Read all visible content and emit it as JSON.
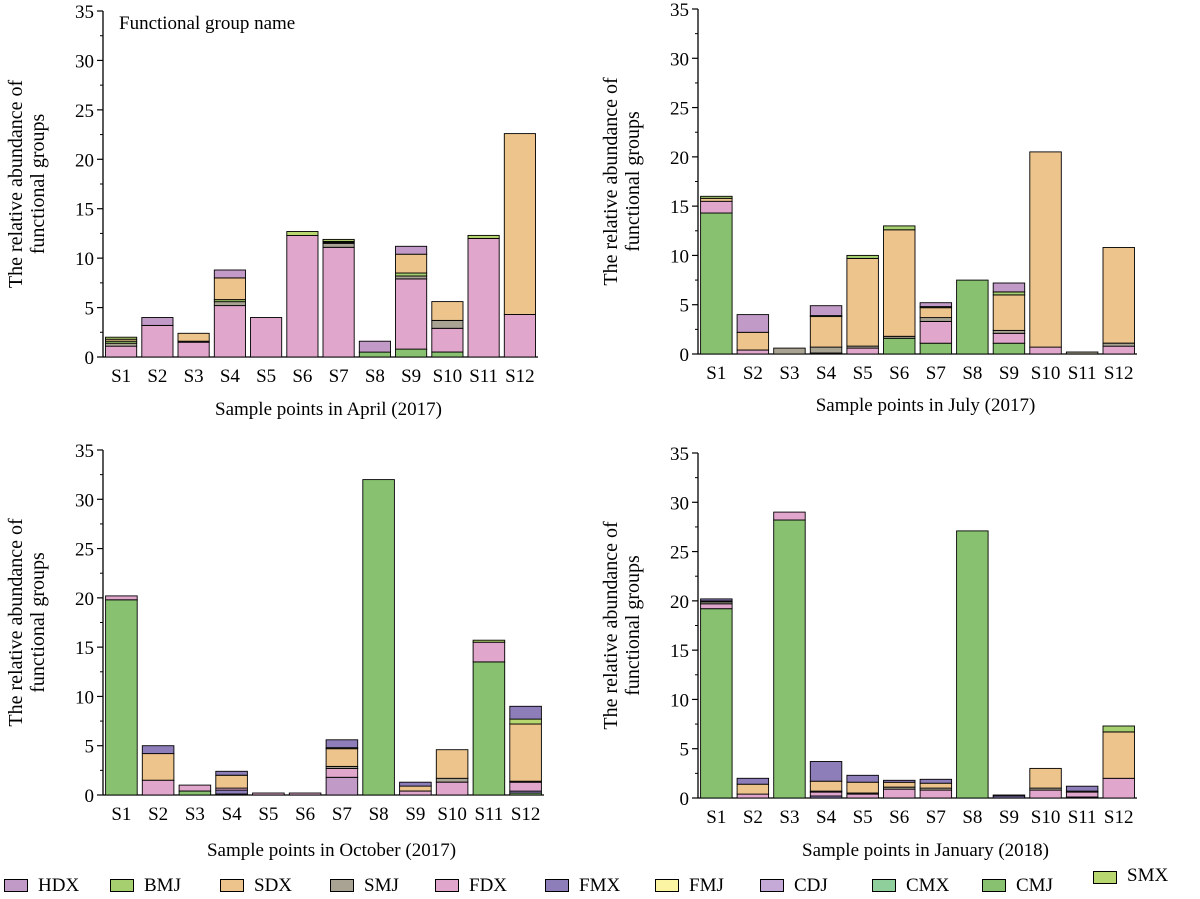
{
  "figure_note": "Functional group name",
  "y_axis_label": [
    "The relative abundance of",
    "functional groups"
  ],
  "legend": {
    "items": [
      {
        "key": "HDX",
        "label": "HDX",
        "color": "#c29ac7"
      },
      {
        "key": "BMJ",
        "label": "BMJ",
        "color": "#a6d06f"
      },
      {
        "key": "SDX",
        "label": "SDX",
        "color": "#ecc48c"
      },
      {
        "key": "SMJ",
        "label": "SMJ",
        "color": "#a9a393"
      },
      {
        "key": "FDX",
        "label": "FDX",
        "color": "#e0a6cb"
      },
      {
        "key": "FMX",
        "label": "FMX",
        "color": "#8d7db8"
      },
      {
        "key": "FMJ",
        "label": "FMJ",
        "color": "#fbf5a3"
      },
      {
        "key": "CDJ",
        "label": "CDJ",
        "color": "#c5a9d6"
      },
      {
        "key": "CMX",
        "label": "CMX",
        "color": "#8fcf9c"
      },
      {
        "key": "CMJ",
        "label": "CMJ",
        "color": "#88c170"
      },
      {
        "key": "SMX",
        "label": "SMX",
        "color": "#b8d771"
      }
    ]
  },
  "chart_data": [
    {
      "type": "bar",
      "stacked": true,
      "xlabel": "Sample points in April (2017)",
      "ylabel": "The relative abundance of functional groups",
      "ylim": [
        0,
        35
      ],
      "yticks": [
        "0",
        "5",
        "10",
        "15",
        "20",
        "25",
        "30",
        "35"
      ],
      "categories": [
        "S1",
        "S2",
        "S3",
        "S4",
        "S5",
        "S6",
        "S7",
        "S8",
        "S9",
        "S10",
        "S11",
        "S12"
      ],
      "series": [
        {
          "name": "CMJ",
          "values": [
            0,
            0,
            0,
            0,
            0,
            0,
            0,
            0.5,
            0.8,
            0.5,
            0,
            0
          ]
        },
        {
          "name": "FDX",
          "values": [
            1.1,
            3.2,
            1.5,
            5.2,
            4.0,
            12.3,
            11.1,
            0,
            7.1,
            2.4,
            12.0,
            4.3
          ]
        },
        {
          "name": "SMJ",
          "values": [
            0.3,
            0,
            0.1,
            0.4,
            0,
            0,
            0.4,
            0,
            0.3,
            0.8,
            0,
            0
          ]
        },
        {
          "name": "BMJ",
          "values": [
            0.2,
            0,
            0,
            0.2,
            0,
            0,
            0.1,
            0,
            0.3,
            0,
            0,
            0
          ]
        },
        {
          "name": "SDX",
          "values": [
            0.2,
            0,
            0.8,
            2.2,
            0,
            0,
            0.1,
            0,
            1.9,
            1.9,
            0,
            18.3
          ]
        },
        {
          "name": "SMX",
          "values": [
            0.2,
            0,
            0,
            0,
            0,
            0.4,
            0.2,
            0,
            0,
            0,
            0.3,
            0
          ]
        },
        {
          "name": "HDX",
          "values": [
            0,
            0.8,
            0,
            0.8,
            0,
            0,
            0,
            1.1,
            0.8,
            0,
            0,
            0
          ]
        }
      ]
    },
    {
      "type": "bar",
      "stacked": true,
      "xlabel": "Sample points in July (2017)",
      "ylabel": "The relative abundance of functional groups",
      "ylim": [
        0,
        35
      ],
      "yticks": [
        "0",
        "5",
        "10",
        "15",
        "20",
        "25",
        "30",
        "35"
      ],
      "categories": [
        "S1",
        "S2",
        "S3",
        "S4",
        "S5",
        "S6",
        "S7",
        "S8",
        "S9",
        "S10",
        "S11",
        "S12"
      ],
      "series": [
        {
          "name": "CMJ",
          "values": [
            14.3,
            0,
            0,
            0,
            0,
            1.6,
            1.1,
            7.5,
            1.1,
            0,
            0,
            0
          ]
        },
        {
          "name": "FDX",
          "values": [
            1.2,
            0.4,
            0,
            0.1,
            0.6,
            0,
            2.2,
            0,
            1.0,
            0.7,
            0,
            0.8
          ]
        },
        {
          "name": "SMJ",
          "values": [
            0,
            0,
            0.6,
            0.6,
            0.2,
            0.2,
            0.4,
            0,
            0.3,
            0,
            0.2,
            0.3
          ]
        },
        {
          "name": "SDX",
          "values": [
            0.3,
            1.8,
            0,
            3.1,
            8.9,
            10.8,
            1.0,
            0,
            3.6,
            19.8,
            0,
            9.7
          ]
        },
        {
          "name": "BMJ",
          "values": [
            0.2,
            0,
            0,
            0.1,
            0.3,
            0.4,
            0.1,
            0,
            0.3,
            0,
            0,
            0
          ]
        },
        {
          "name": "HDX",
          "values": [
            0,
            1.8,
            0,
            1.0,
            0,
            0,
            0.4,
            0,
            0.9,
            0,
            0,
            0
          ]
        }
      ]
    },
    {
      "type": "bar",
      "stacked": true,
      "xlabel": "Sample points in October (2017)",
      "ylabel": "The relative abundance of functional groups",
      "ylim": [
        0,
        35
      ],
      "yticks": [
        "0",
        "5",
        "10",
        "15",
        "20",
        "25",
        "30",
        "35"
      ],
      "categories": [
        "S1",
        "S2",
        "S3",
        "S4",
        "S5",
        "S6",
        "S7",
        "S8",
        "S9",
        "S10",
        "S11",
        "S12"
      ],
      "series": [
        {
          "name": "CMJ",
          "values": [
            19.8,
            0,
            0.4,
            0.1,
            0,
            0,
            0,
            32.0,
            0,
            0,
            13.5,
            0.2
          ]
        },
        {
          "name": "FMX",
          "values": [
            0,
            0,
            0,
            0.4,
            0,
            0,
            0,
            0,
            0,
            0,
            0,
            0.2
          ]
        },
        {
          "name": "HDX",
          "values": [
            0,
            0,
            0,
            0,
            0,
            0,
            1.8,
            0,
            0,
            0,
            0,
            0
          ]
        },
        {
          "name": "FDX",
          "values": [
            0.4,
            1.5,
            0.6,
            0.2,
            0.2,
            0.2,
            0.9,
            0,
            0.4,
            1.3,
            2.0,
            0.9
          ]
        },
        {
          "name": "SMJ",
          "values": [
            0,
            0,
            0,
            0,
            0,
            0,
            0.2,
            0,
            0,
            0.4,
            0,
            0.1
          ]
        },
        {
          "name": "SDX",
          "values": [
            0,
            2.7,
            0,
            1.3,
            0,
            0,
            1.8,
            0,
            0.5,
            2.9,
            0,
            5.8
          ]
        },
        {
          "name": "SMX",
          "values": [
            0,
            0,
            0,
            0,
            0,
            0,
            0.1,
            0,
            0,
            0,
            0.2,
            0.5
          ]
        },
        {
          "name": "FMX ",
          "values": [
            0,
            0.8,
            0,
            0.4,
            0,
            0,
            0.8,
            0,
            0.4,
            0,
            0,
            1.3
          ]
        }
      ]
    },
    {
      "type": "bar",
      "stacked": true,
      "xlabel": "Sample points in January (2018)",
      "ylabel": "The relative abundance of functional groups",
      "ylim": [
        0,
        35
      ],
      "yticks": [
        "0",
        "5",
        "10",
        "15",
        "20",
        "25",
        "30",
        "35"
      ],
      "categories": [
        "S1",
        "S2",
        "S3",
        "S4",
        "S5",
        "S6",
        "S7",
        "S8",
        "S9",
        "S10",
        "S11",
        "S12"
      ],
      "series": [
        {
          "name": "CMJ",
          "values": [
            19.2,
            0,
            28.2,
            0,
            0,
            0,
            0,
            27.1,
            0,
            0,
            0,
            0
          ]
        },
        {
          "name": "FMX",
          "values": [
            0,
            0,
            0,
            0.2,
            0,
            0,
            0,
            0,
            0.2,
            0,
            0.1,
            0
          ]
        },
        {
          "name": "FDX",
          "values": [
            0.5,
            0.4,
            0.8,
            0.4,
            0.4,
            0.9,
            0.8,
            0,
            0,
            0.8,
            0.5,
            2.0
          ]
        },
        {
          "name": "SMJ",
          "values": [
            0.2,
            0,
            0,
            0.1,
            0.1,
            0.2,
            0.2,
            0,
            0,
            0.2,
            0.1,
            0
          ]
        },
        {
          "name": "SDX",
          "values": [
            0.1,
            1.0,
            0,
            1.0,
            1.1,
            0.5,
            0.5,
            0,
            0,
            2.0,
            0,
            4.7
          ]
        },
        {
          "name": "BMJ",
          "values": [
            0,
            0,
            0,
            0,
            0,
            0,
            0,
            0,
            0,
            0,
            0,
            0.6
          ]
        },
        {
          "name": "FMX ",
          "values": [
            0.2,
            0.6,
            0,
            2.0,
            0.7,
            0.2,
            0.4,
            0,
            0.1,
            0,
            0.5,
            0
          ]
        }
      ]
    }
  ]
}
